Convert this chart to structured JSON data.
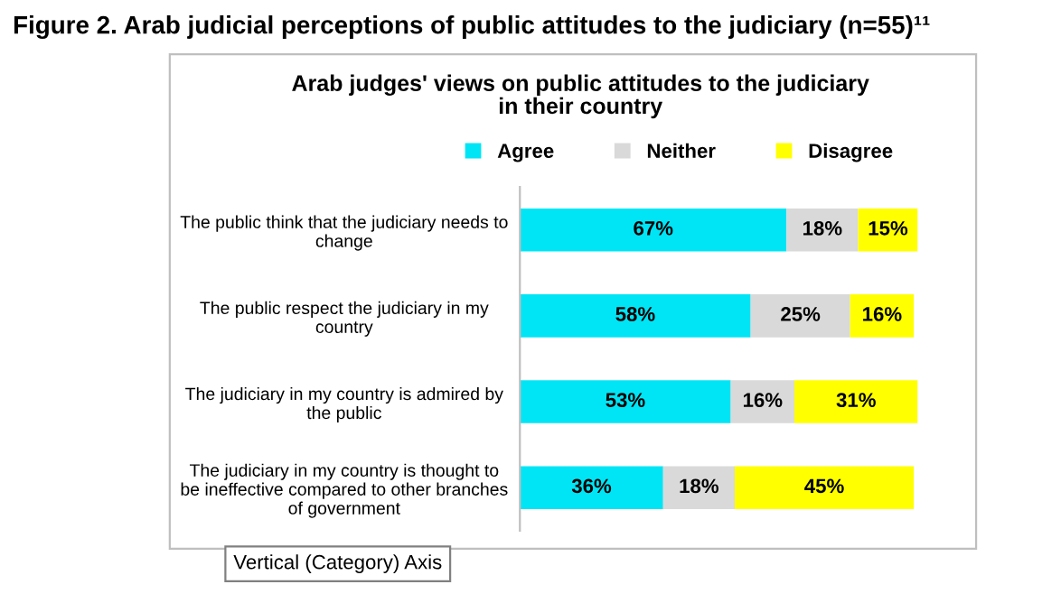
{
  "chart_data": {
    "type": "bar",
    "orientation": "horizontal",
    "stacked": true,
    "title": "Figure 2. Arab judicial perceptions of public attitudes to the judiciary (n=55)¹¹",
    "subtitle": "Arab judges' views on public attitudes to the judiciary\nin their country",
    "categories": [
      "The public think that the judiciary needs to\nchange",
      "The public respect the judiciary in my\ncountry",
      "The judiciary in my country is admired by\nthe public",
      "The judiciary in my country is thought to\nbe ineffective compared to other branches\nof government"
    ],
    "series": [
      {
        "name": "Agree",
        "color": "#00e5f5",
        "values": [
          67,
          58,
          53,
          36
        ],
        "value_labels": [
          "67%",
          "58%",
          "53%",
          "36%"
        ]
      },
      {
        "name": "Neither",
        "color": "#d9d9d9",
        "values": [
          18,
          25,
          16,
          18
        ],
        "value_labels": [
          "18%",
          "25%",
          "16%",
          "18%"
        ]
      },
      {
        "name": "Disagree",
        "color": "#ffff00",
        "values": [
          15,
          16,
          31,
          45
        ],
        "value_labels": [
          "15%",
          "16%",
          "31%",
          "45%"
        ]
      }
    ],
    "tick_labels": "y",
    "legend": "top",
    "grid": false,
    "annotations": [
      "Vertical (Category) Axis"
    ]
  }
}
